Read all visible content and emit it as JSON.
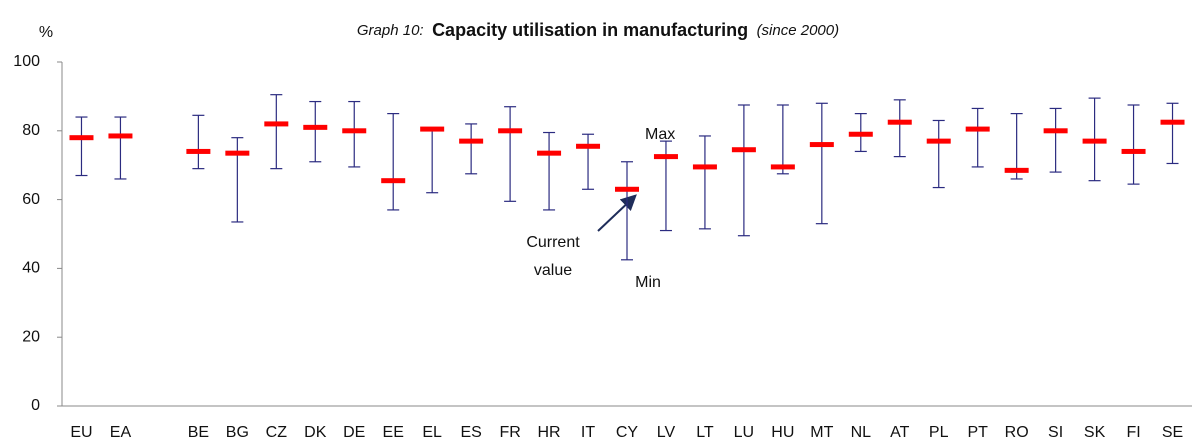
{
  "chart_data": {
    "type": "range",
    "title_prefix": "Graph 10:",
    "title": "Capacity utilisation in manufacturing",
    "title_suffix": "(since 2000)",
    "y_label": "%",
    "categories": [
      "EU",
      "EA",
      null,
      "BE",
      "BG",
      "CZ",
      "DK",
      "DE",
      "EE",
      "EL",
      "ES",
      "FR",
      "HR",
      "IT",
      "CY",
      "LV",
      "LT",
      "LU",
      "HU",
      "MT",
      "NL",
      "AT",
      "PL",
      "PT",
      "RO",
      "SI",
      "SK",
      "FI",
      "SE"
    ],
    "max_values": [
      84,
      84,
      null,
      84.5,
      78,
      90.5,
      88.5,
      88.5,
      85,
      80.5,
      82,
      87,
      79.5,
      79,
      71,
      77,
      78.5,
      87.5,
      87.5,
      88,
      85,
      89,
      83,
      86.5,
      85,
      86.5,
      89.5,
      87.5,
      88
    ],
    "current_values": [
      78,
      78.5,
      null,
      74,
      73.5,
      82,
      81,
      80,
      65.5,
      80.5,
      77,
      80,
      73.5,
      75.5,
      63,
      72.5,
      69.5,
      74.5,
      69.5,
      76,
      79,
      82.5,
      77,
      80.5,
      68.5,
      80,
      77,
      74,
      82.5
    ],
    "min_values": [
      67,
      66,
      null,
      69,
      53.5,
      69,
      71,
      69.5,
      57,
      62,
      67.5,
      59.5,
      57,
      63,
      42.5,
      51,
      51.5,
      49.5,
      67.5,
      53,
      74,
      72.5,
      63.5,
      69.5,
      66,
      68,
      65.5,
      64.5,
      70.5
    ],
    "range_color": "#2b2b80",
    "current_color": "#ff0000",
    "ylim": [
      0,
      100
    ],
    "yticks": [
      0,
      20,
      40,
      60,
      80,
      100
    ],
    "grid": false,
    "annotations": {
      "max": "Max",
      "current": [
        "Current",
        "value"
      ],
      "min": "Min"
    }
  }
}
